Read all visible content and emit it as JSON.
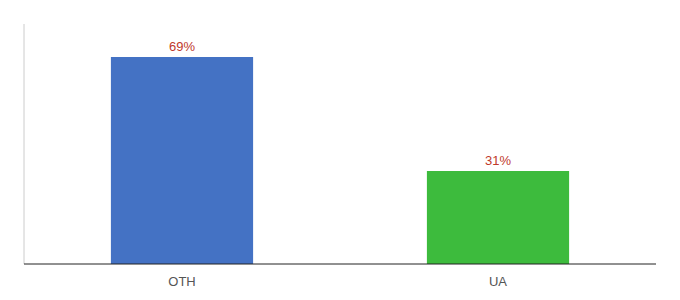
{
  "chart_data": {
    "type": "bar",
    "categories": [
      "OTH",
      "UA"
    ],
    "values": [
      69,
      31
    ],
    "colors": [
      "#4472c4",
      "#3dbb3d"
    ],
    "ylim": [
      0,
      80
    ],
    "data_labels": true,
    "value_labels": [
      "69%",
      "31%"
    ],
    "tick_labels": "x"
  }
}
